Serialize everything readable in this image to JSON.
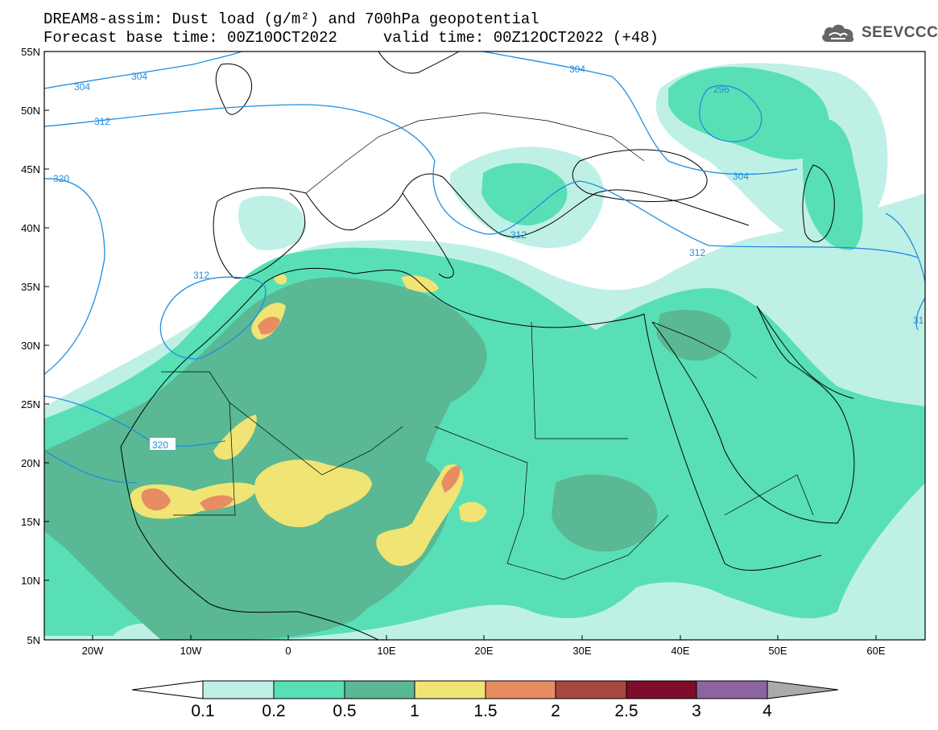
{
  "title": {
    "line1": "DREAM8-assim: Dust load (g/m²) and 700hPa geopotential",
    "line2": "Forecast base time: 00Z10OCT2022     valid time: 00Z12OCT2022 (+48)"
  },
  "logo": {
    "text": "SEEVCCC",
    "icon": "cloud-icon"
  },
  "axes": {
    "lat_labels": [
      "55N",
      "50N",
      "45N",
      "40N",
      "35N",
      "30N",
      "25N",
      "20N",
      "15N",
      "10N",
      "5N"
    ],
    "lon_labels": [
      "20W",
      "10W",
      "0",
      "10E",
      "20E",
      "30E",
      "40E",
      "50E",
      "60E"
    ]
  },
  "contours": {
    "color": "#1e8fe0",
    "labels": [
      "304",
      "304",
      "312",
      "320",
      "312",
      "320",
      "304",
      "296",
      "304",
      "312",
      "312",
      "31"
    ]
  },
  "colorbar": {
    "colors": [
      "#bff0e6",
      "#58dfb5",
      "#5ab894",
      "#f0e474",
      "#e88c62",
      "#a84840",
      "#7e0c2c",
      "#8c64a0"
    ],
    "tick_labels": [
      "0.1",
      "0.2",
      "0.5",
      "1",
      "1.5",
      "2",
      "2.5",
      "3",
      "4"
    ]
  },
  "map_colors": {
    "c01": "#bff0e6",
    "c02": "#58dfb5",
    "c05": "#5ab894",
    "c10": "#f0e474",
    "c15": "#e88c62",
    "c20": "#a84840"
  }
}
